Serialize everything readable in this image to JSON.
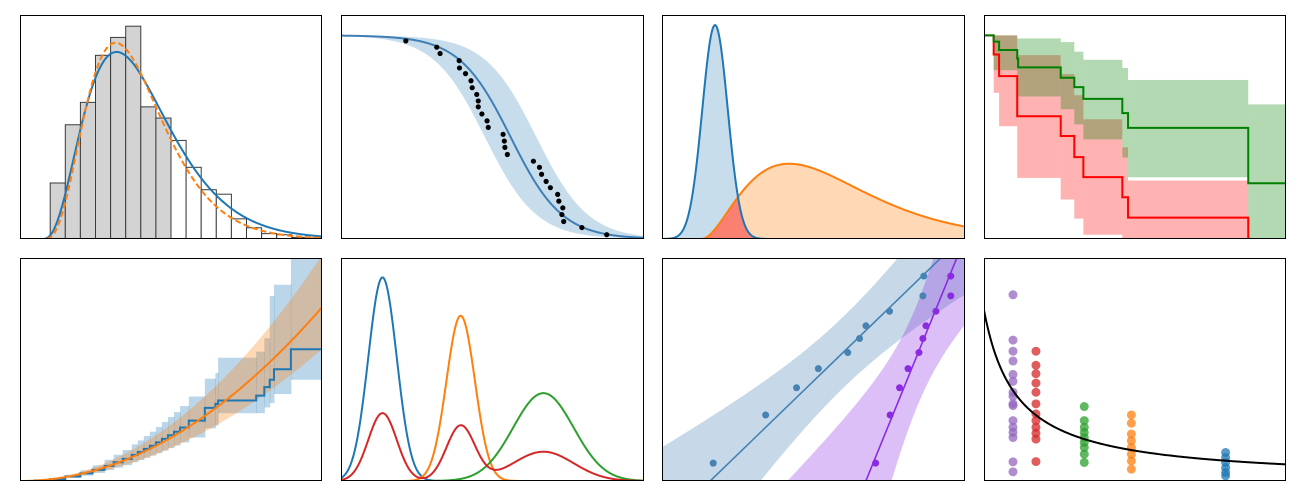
{
  "colors": {
    "blue": "#1f77b4",
    "orange": "#ff7f0e",
    "green": "#2ca02c",
    "red": "#d62728",
    "purple": "#9467bd",
    "steelblue": "#4682b4",
    "violet": "#8a2be2",
    "km_red": "#ff0000",
    "km_green": "#008000",
    "overlap": "#fa8072"
  },
  "chart_data": [
    {
      "type": "bar",
      "xlim": [
        0,
        20
      ],
      "ylim": [
        0,
        100
      ],
      "grid": false,
      "bins_start": 2,
      "bin_width": 1,
      "values": [
        25,
        51,
        61,
        82,
        90,
        95,
        59,
        54,
        44,
        32,
        22,
        20,
        9,
        5,
        2.4,
        1.9,
        0.7,
        0.4
      ],
      "shaded_bins": 8,
      "curves": [
        {
          "style": "solid",
          "color": "#1f77b4",
          "loc": 1.45,
          "shape": 4,
          "scale": 1.65,
          "peak": 83.5
        },
        {
          "style": "dashed",
          "color": "#ff7f0e",
          "loc": 1.5,
          "shape": 4.5,
          "scale": 1.38,
          "peak": 87.6
        }
      ]
    },
    {
      "type": "scatter",
      "xlim": [
        0,
        10
      ],
      "ylim": [
        0,
        1.1
      ],
      "grid": false,
      "fit": {
        "type": "logistic-decreasing",
        "center": 5.6,
        "scale": 0.85,
        "band_shift": 0.85
      },
      "points": [
        [
          2.14,
          0.973
        ],
        [
          3.16,
          0.942
        ],
        [
          3.27,
          0.911
        ],
        [
          3.9,
          0.876
        ],
        [
          3.91,
          0.84
        ],
        [
          4.11,
          0.812
        ],
        [
          4.29,
          0.777
        ],
        [
          4.33,
          0.743
        ],
        [
          4.48,
          0.71
        ],
        [
          4.53,
          0.678
        ],
        [
          4.53,
          0.649
        ],
        [
          4.65,
          0.614
        ],
        [
          4.82,
          0.58
        ],
        [
          4.86,
          0.548
        ],
        [
          5.35,
          0.514
        ],
        [
          5.39,
          0.481
        ],
        [
          5.41,
          0.45
        ],
        [
          5.49,
          0.415
        ],
        [
          6.35,
          0.382
        ],
        [
          6.55,
          0.352
        ],
        [
          6.62,
          0.318
        ],
        [
          6.77,
          0.283
        ],
        [
          6.91,
          0.252
        ],
        [
          7.15,
          0.219
        ],
        [
          7.19,
          0.186
        ],
        [
          7.32,
          0.153
        ],
        [
          7.29,
          0.12
        ],
        [
          7.35,
          0.086
        ],
        [
          7.95,
          0.056
        ],
        [
          8.77,
          0.021
        ]
      ]
    },
    {
      "type": "area",
      "xlim": [
        0,
        10
      ],
      "ylim": [
        0,
        1
      ],
      "grid": false,
      "series": [
        {
          "dist": "normal",
          "mean": 1.75,
          "sd": 0.42,
          "peak": 0.955,
          "color": "#1f77b4"
        },
        {
          "dist": "gamma",
          "loc": 1.3,
          "shape": 3,
          "scale": 1.45,
          "peak": 0.336,
          "color": "#ff7f0e"
        }
      ]
    },
    {
      "type": "line",
      "subtype": "step-survival",
      "xlim": [
        0,
        10
      ],
      "ylim": [
        0,
        1.1
      ],
      "grid": false,
      "series": [
        {
          "color": "#ff0000",
          "end": 8.75,
          "drop_to_zero": true,
          "t": [
            0,
            0.32,
            0.5,
            1.1,
            2.54,
            2.99,
            3.29,
            4.58,
            4.77
          ],
          "s": [
            1.0,
            0.906,
            0.8,
            0.603,
            0.506,
            0.402,
            0.304,
            0.205,
            0.105
          ],
          "lo": [
            1.0,
            0.718,
            0.554,
            0.3,
            0.194,
            0.1,
            0.021,
            0,
            0
          ],
          "hi": [
            1.0,
            1.0,
            1.0,
            0.903,
            0.81,
            0.706,
            0.588,
            0.45,
            0.287
          ]
        },
        {
          "color": "#008000",
          "end": 10,
          "drop_to_zero": false,
          "t": [
            0,
            0.32,
            0.5,
            1.1,
            1.13,
            2.54,
            2.99,
            3.29,
            4.58,
            4.77,
            8.75
          ],
          "s": [
            1.0,
            0.969,
            0.928,
            0.886,
            0.843,
            0.792,
            0.746,
            0.688,
            0.618,
            0.546,
            0.274
          ],
          "lo": [
            1.0,
            0.829,
            0.829,
            0.7,
            0.7,
            0.637,
            0.563,
            0.489,
            0.4,
            0.303,
            0
          ],
          "hi": [
            1.0,
            1.0,
            1.0,
            0.985,
            0.985,
            0.967,
            0.92,
            0.88,
            0.84,
            0.781,
            0.661
          ]
        }
      ]
    },
    {
      "type": "line",
      "subtype": "cumulative-hazard",
      "xlim": [
        0,
        10
      ],
      "ylim": [
        0,
        10
      ],
      "grid": false,
      "fit": {
        "color": "#ff7f0e",
        "coef": 0.0779,
        "power": 2,
        "band_lo": 0.76,
        "band_hi": 1.3
      },
      "steps": {
        "color": "#1f77b4",
        "t": [
          0.5,
          1.0,
          1.5,
          2.0,
          2.4,
          2.8,
          3.1,
          3.4,
          3.7,
          3.9,
          4.1,
          4.3,
          4.5,
          4.7,
          4.9,
          5.1,
          5.3,
          5.59,
          6.12,
          6.47,
          6.56,
          7.82,
          8.09,
          8.27,
          8.41,
          8.97
        ],
        "s": [
          0.03,
          0.09,
          0.2,
          0.34,
          0.5,
          0.68,
          0.84,
          0.99,
          1.17,
          1.3,
          1.44,
          1.58,
          1.73,
          1.89,
          2.05,
          2.21,
          2.4,
          2.71,
          3.28,
          3.46,
          3.61,
          3.83,
          4.21,
          4.54,
          5.01,
          5.91
        ],
        "lo": [
          0.02,
          0.06,
          0.14,
          0.24,
          0.36,
          0.49,
          0.6,
          0.71,
          0.84,
          0.94,
          1.04,
          1.14,
          1.25,
          1.36,
          1.48,
          1.59,
          1.73,
          1.95,
          2.36,
          2.49,
          3.04,
          3.04,
          3.3,
          3.5,
          3.9,
          4.54
        ],
        "hi": [
          0.04,
          0.13,
          0.28,
          0.48,
          0.7,
          0.95,
          1.18,
          1.39,
          1.64,
          1.82,
          2.02,
          2.21,
          2.42,
          2.65,
          2.87,
          3.09,
          3.36,
          3.79,
          4.59,
          4.84,
          5.53,
          5.8,
          6.4,
          8.3,
          8.8,
          11
        ]
      }
    },
    {
      "type": "line",
      "xlim": [
        0,
        10
      ],
      "ylim": [
        0,
        1
      ],
      "grid": false,
      "series": [
        {
          "color": "#1f77b4",
          "mean": 1.37,
          "sd": 0.47,
          "peak": 0.913
        },
        {
          "color": "#ff7f0e",
          "mean": 3.95,
          "sd": 0.47,
          "peak": 0.741
        },
        {
          "color": "#2ca02c",
          "mean": 6.68,
          "sd": 1.0,
          "peak": 0.394
        },
        {
          "color": "#d62728",
          "mixture_of": [
            0,
            1,
            2
          ]
        }
      ]
    },
    {
      "type": "scatter",
      "xlim": [
        0,
        10
      ],
      "ylim": [
        0,
        10
      ],
      "grid": false,
      "series": [
        {
          "color": "#4682b4",
          "slope": 1.314,
          "intercept": -2.09,
          "band_a": 2.56,
          "band_b": 0.289,
          "band_center": 6.0,
          "points": [
            [
              1.69,
              0.8
            ],
            [
              3.42,
              2.96
            ],
            [
              4.44,
              4.18
            ],
            [
              5.16,
              5.04
            ],
            [
              6.13,
              5.76
            ],
            [
              6.52,
              6.39
            ],
            [
              6.73,
              6.96
            ],
            [
              7.51,
              7.61
            ],
            [
              8.61,
              8.3
            ],
            [
              8.64,
              9.19
            ]
          ]
        },
        {
          "color": "#8a2be2",
          "slope": 3.33,
          "intercept": -22.4,
          "band_a": 5.3,
          "band_b": 3.8,
          "band_center": 8.4,
          "points": [
            [
              7.05,
              0.8
            ],
            [
              7.53,
              2.96
            ],
            [
              7.84,
              4.18
            ],
            [
              8.12,
              5.04
            ],
            [
              8.48,
              5.76
            ],
            [
              8.61,
              6.39
            ],
            [
              8.71,
              6.96
            ],
            [
              9.04,
              7.61
            ],
            [
              9.53,
              8.3
            ],
            [
              9.53,
              9.19
            ]
          ]
        }
      ]
    },
    {
      "type": "scatter",
      "xlim": [
        0,
        10
      ],
      "ylim": [
        0,
        10
      ],
      "grid": false,
      "fit": {
        "color": "#000000",
        "a": 8.27,
        "b": 1.08
      },
      "groups": [
        {
          "color": "#9467bd",
          "x": 0.96,
          "y": [
            8.35,
            6.32,
            5.82,
            5.38,
            4.78,
            4.47,
            3.98,
            3.8,
            3.46,
            3.38,
            2.71,
            2.41,
            2.18,
            1.95,
            0.86,
            0.41
          ]
        },
        {
          "color": "#d62728",
          "x": 1.72,
          "y": [
            5.82,
            5.19,
            4.81,
            4.39,
            3.98,
            3.46,
            3.01,
            2.71,
            2.41,
            2.14,
            1.88,
            0.87
          ]
        },
        {
          "color": "#2ca02c",
          "x": 3.32,
          "y": [
            3.34,
            2.71,
            2.41,
            2.18,
            1.95,
            1.73,
            1.5,
            1.2,
            0.83
          ]
        },
        {
          "color": "#ff7f0e",
          "x": 4.88,
          "y": [
            2.96,
            2.59,
            2.11,
            1.8,
            1.5,
            1.2,
            0.9,
            0.53
          ]
        },
        {
          "color": "#1f77b4",
          "x": 8.0,
          "y": [
            1.28,
            1.05,
            0.83,
            0.6,
            0.38,
            0.23
          ]
        }
      ]
    }
  ]
}
